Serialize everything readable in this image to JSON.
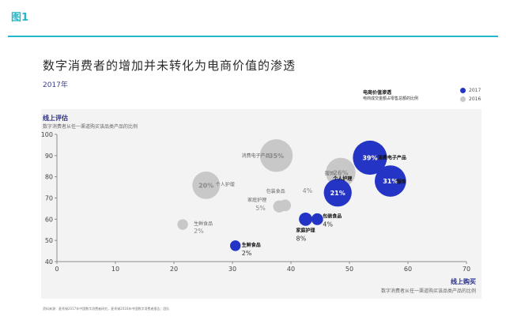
{
  "header": {
    "figure_label": "图1"
  },
  "chart_data": {
    "type": "scatter",
    "title": "数字消费者的增加并未转化为电商价值的渗透",
    "subtitle": "2017年",
    "annotation_title": "电商价值渗透",
    "annotation_subtitle": "电商成交金额占零售总额的比例",
    "ylabel": "线上评估",
    "ylabel_sub": "数字消费者从任一渠道购买该品类产品的比例",
    "xlabel": "线上购买",
    "xlabel_sub": "数字消费者从任一渠道购买该品类产品的比例",
    "xlim": [
      0,
      70
    ],
    "ylim": [
      40,
      100
    ],
    "xticks": [
      0,
      10,
      20,
      30,
      40,
      50,
      60,
      70
    ],
    "yticks": [
      40,
      50,
      60,
      70,
      80,
      90,
      100
    ],
    "legend": [
      {
        "name": "2017",
        "color": "#2434c4"
      },
      {
        "name": "2016",
        "color": "#c8c8c8"
      }
    ],
    "series": [
      {
        "name": "2017",
        "color": "#2434c4",
        "points": [
          {
            "category": "消费电子产品",
            "x": 53.5,
            "y": 89,
            "value": "39%",
            "value_inside": true
          },
          {
            "category": "服饰",
            "x": 57,
            "y": 78,
            "value": "31%",
            "value_inside": true
          },
          {
            "category": "个人护理",
            "x": 48,
            "y": 72.5,
            "value": "21%",
            "value_inside": true
          },
          {
            "category": "包装食品",
            "x": 44.5,
            "y": 60,
            "value": "4%",
            "value_inside": false
          },
          {
            "category": "家庭护理",
            "x": 42.5,
            "y": 60,
            "value": "8%",
            "value_inside": false
          },
          {
            "category": "生鲜食品",
            "x": 30.5,
            "y": 47.5,
            "value": "2%",
            "value_inside": false
          }
        ]
      },
      {
        "name": "2016",
        "color": "#c8c8c8",
        "points": [
          {
            "category": "消费电子产品",
            "x": 37.5,
            "y": 90,
            "value": "35%",
            "value_inside": true
          },
          {
            "category": "服饰",
            "x": 48.5,
            "y": 82,
            "value": "26%",
            "value_inside": true
          },
          {
            "category": "个人护理",
            "x": 25.5,
            "y": 76,
            "value": "20%",
            "value_inside": true
          },
          {
            "category": "包装食品",
            "x": 39,
            "y": 66.5,
            "value": "4%",
            "value_inside": false
          },
          {
            "category": "家庭护理",
            "x": 38,
            "y": 66,
            "value": "5%",
            "value_inside": false
          },
          {
            "category": "生鲜食品",
            "x": 21.5,
            "y": 57.5,
            "value": "2%",
            "value_inside": false
          }
        ]
      }
    ]
  },
  "footer": {
    "source": "资料来源：麦肯锡2017年中国数字消费者研究，麦肯锡2016年中国数字消费者报告；团队"
  }
}
